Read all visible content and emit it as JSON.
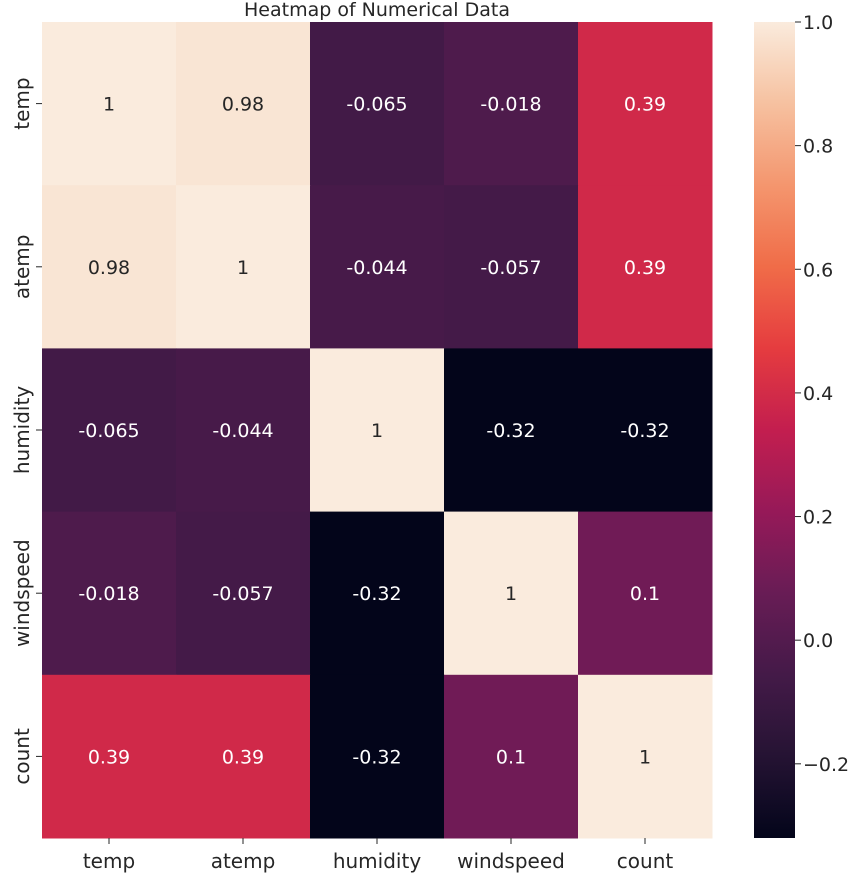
{
  "chart_data": {
    "type": "heatmap",
    "title": "Heatmap of Numerical Data",
    "xlabel": "",
    "ylabel": "",
    "x_categories": [
      "temp",
      "atemp",
      "humidity",
      "windspeed",
      "count"
    ],
    "y_categories": [
      "temp",
      "atemp",
      "humidity",
      "windspeed",
      "count"
    ],
    "values": [
      [
        1,
        0.98,
        -0.065,
        -0.018,
        0.39
      ],
      [
        0.98,
        1,
        -0.044,
        -0.057,
        0.39
      ],
      [
        -0.065,
        -0.044,
        1,
        -0.32,
        -0.32
      ],
      [
        -0.018,
        -0.057,
        -0.32,
        1,
        0.1
      ],
      [
        0.39,
        0.39,
        -0.32,
        0.1,
        1
      ]
    ],
    "value_labels": [
      [
        "1",
        "0.98",
        "-0.065",
        "-0.018",
        "0.39"
      ],
      [
        "0.98",
        "1",
        "-0.044",
        "-0.057",
        "0.39"
      ],
      [
        "-0.065",
        "-0.044",
        "1",
        "-0.32",
        "-0.32"
      ],
      [
        "-0.018",
        "-0.057",
        "-0.32",
        "1",
        "0.1"
      ],
      [
        "0.39",
        "0.39",
        "-0.32",
        "0.1",
        "1"
      ]
    ],
    "colorbar": {
      "vmin": -0.32,
      "vmax": 1.0,
      "ticks": [
        1.0,
        0.8,
        0.6,
        0.4,
        0.2,
        0.0,
        -0.2
      ],
      "tick_labels": [
        "1.0",
        "0.8",
        "0.6",
        "0.4",
        "0.2",
        "0.0",
        "−0.2"
      ]
    },
    "colormap": "rocket",
    "grid": false
  }
}
